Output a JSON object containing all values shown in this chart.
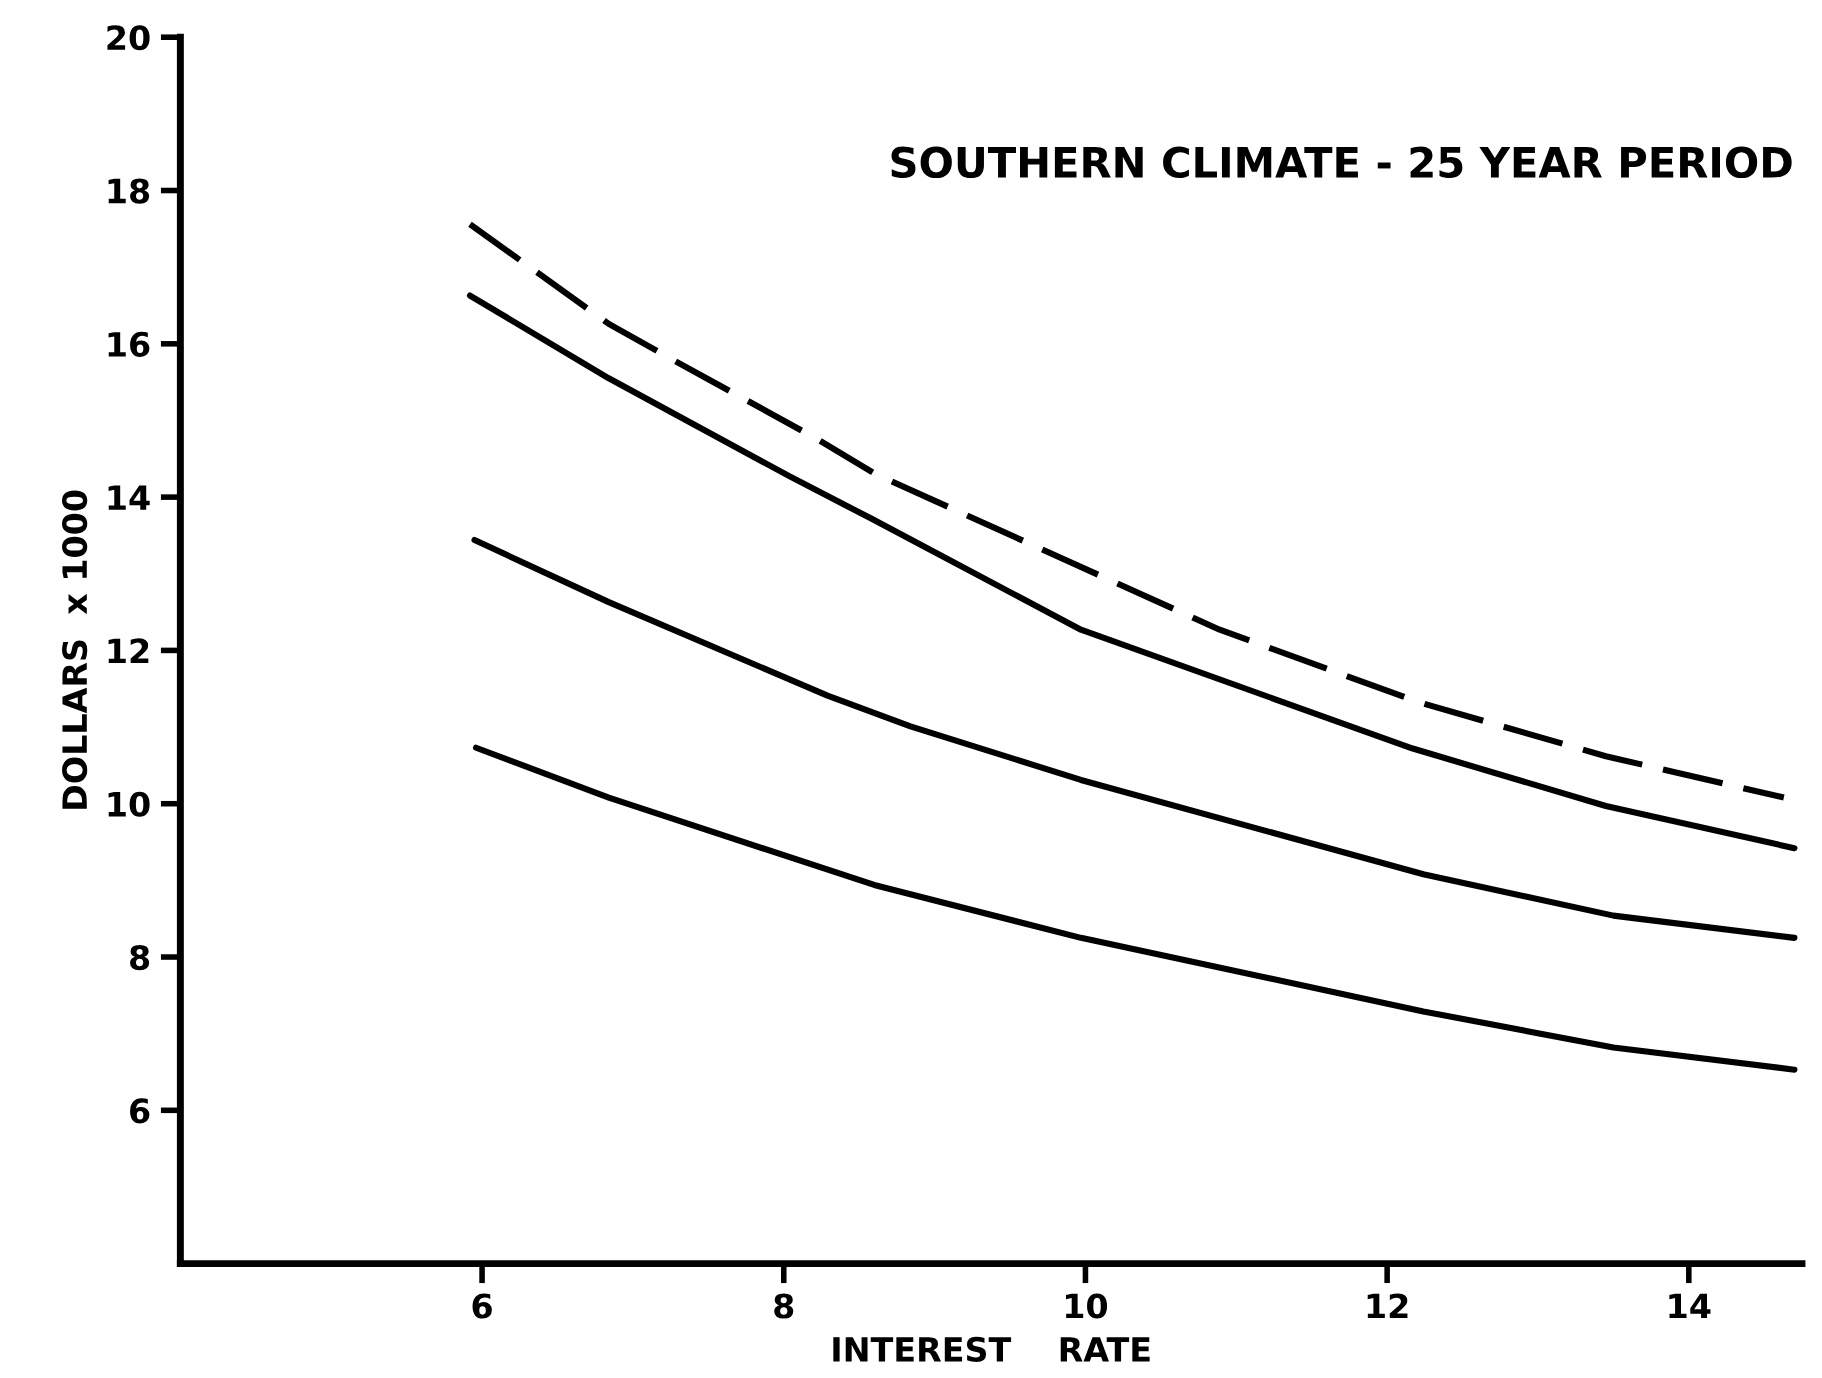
{
  "chart_data": {
    "type": "line",
    "title": "SOUTHERN CLIMATE - 25 YEAR PERIOD",
    "xlabel": "INTEREST    RATE",
    "ylabel": "DOLLARS  x 1000",
    "xlim": [
      4,
      14.75
    ],
    "xticks": [
      6,
      8,
      10,
      12,
      14
    ],
    "ylim": [
      4,
      20
    ],
    "yticks": [
      6,
      8,
      10,
      12,
      14,
      16,
      18,
      20
    ],
    "grid": false,
    "marker": "none",
    "series": [
      {
        "color": "#000000",
        "line_style": "dashed",
        "x": [
          5.92,
          6.84,
          7.22,
          8.21,
          8.61,
          10.89,
          12.2,
          13.45,
          14.63
        ],
        "values": [
          17.56,
          16.26,
          15.84,
          14.77,
          14.3,
          12.27,
          11.33,
          10.62,
          10.08
        ]
      },
      {
        "color": "#000000",
        "line_style": "solid",
        "x": [
          5.92,
          6.84,
          8.04,
          8.58,
          9.97,
          12.17,
          13.45,
          14.7
        ],
        "values": [
          16.63,
          15.55,
          14.27,
          13.72,
          12.27,
          10.72,
          9.97,
          9.42
        ]
      },
      {
        "color": "#000000",
        "line_style": "solid",
        "x": [
          5.95,
          6.84,
          8.29,
          8.84,
          9.97,
          12.24,
          13.5,
          14.7
        ],
        "values": [
          13.44,
          12.63,
          11.41,
          11.01,
          10.31,
          9.08,
          8.54,
          8.25
        ]
      },
      {
        "color": "#000000",
        "line_style": "solid",
        "x": [
          5.96,
          6.84,
          8.6,
          9.97,
          12.24,
          13.5,
          14.7
        ],
        "values": [
          10.73,
          10.08,
          8.94,
          8.25,
          7.29,
          6.82,
          6.53
        ]
      }
    ]
  }
}
